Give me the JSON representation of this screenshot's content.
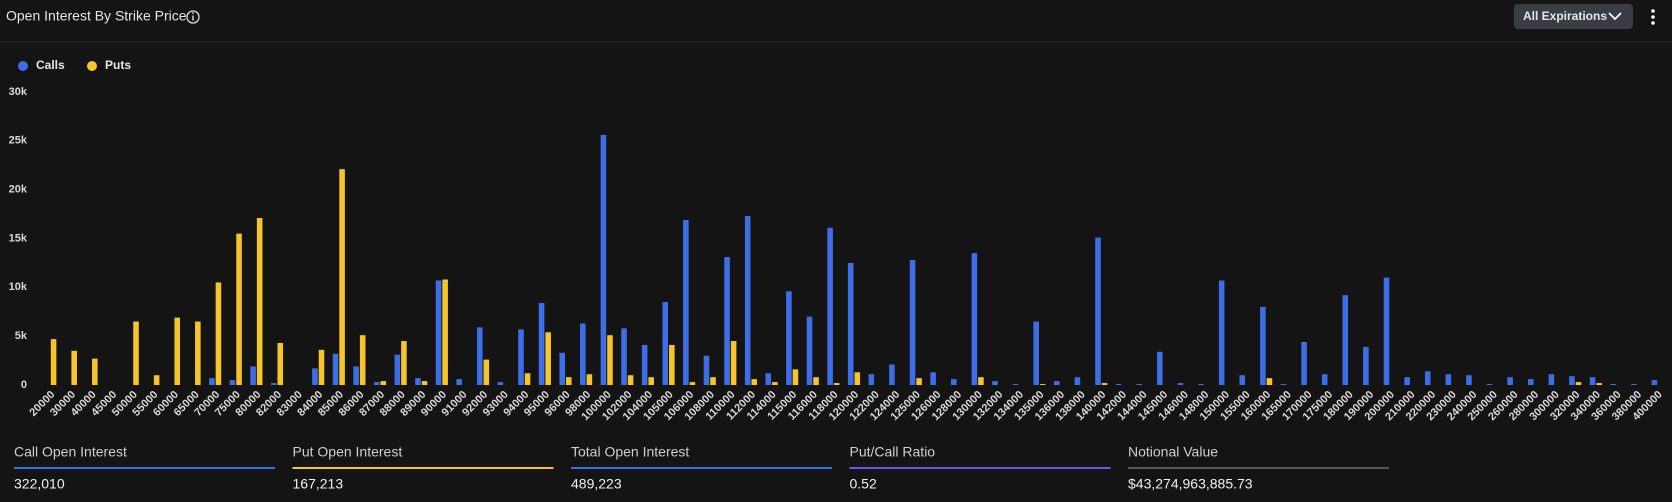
{
  "header": {
    "title": "Open Interest By Strike Price",
    "button": "All Expirations"
  },
  "chart_data": {
    "type": "bar",
    "categories": [
      "20000",
      "30000",
      "40000",
      "45000",
      "50000",
      "55000",
      "60000",
      "65000",
      "70000",
      "75000",
      "80000",
      "82000",
      "83000",
      "84000",
      "85000",
      "86000",
      "87000",
      "88000",
      "89000",
      "90000",
      "91000",
      "92000",
      "93000",
      "94000",
      "95000",
      "96000",
      "98000",
      "100000",
      "102000",
      "104000",
      "105000",
      "106000",
      "108000",
      "110000",
      "112000",
      "114000",
      "115000",
      "116000",
      "118000",
      "120000",
      "122000",
      "124000",
      "125000",
      "126000",
      "128000",
      "130000",
      "132000",
      "134000",
      "135000",
      "136000",
      "138000",
      "140000",
      "142000",
      "144000",
      "145000",
      "146000",
      "148000",
      "150000",
      "155000",
      "160000",
      "165000",
      "170000",
      "175000",
      "180000",
      "190000",
      "200000",
      "210000",
      "220000",
      "230000",
      "240000",
      "250000",
      "260000",
      "280000",
      "300000",
      "320000",
      "340000",
      "360000",
      "380000",
      "400000"
    ],
    "series": [
      {
        "name": "Calls",
        "color": "#3d6ee8",
        "values": [
          0,
          0,
          0,
          0,
          0,
          0,
          0,
          0,
          700,
          500,
          1900,
          200,
          0,
          1700,
          3200,
          1900,
          300,
          3100,
          700,
          10700,
          600,
          5900,
          300,
          5700,
          8400,
          3300,
          6300,
          25600,
          5800,
          4100,
          8500,
          16900,
          3000,
          13100,
          17300,
          1200,
          9600,
          7000,
          16100,
          12500,
          1100,
          2100,
          12800,
          1300,
          600,
          13500,
          400,
          100,
          6500,
          400,
          800,
          15100,
          100,
          100,
          3400,
          200,
          100,
          10700,
          1000,
          8000,
          100,
          4400,
          1100,
          9200,
          3900,
          11000,
          800,
          1400,
          1100,
          1000,
          100,
          800,
          600,
          1100,
          900,
          800,
          100,
          100,
          500
        ]
      },
      {
        "name": "Puts",
        "color": "#f5c52b",
        "values": [
          4700,
          3500,
          2700,
          0,
          6500,
          1000,
          6900,
          6500,
          10500,
          15500,
          17100,
          4300,
          0,
          3600,
          22100,
          5100,
          400,
          4500,
          400,
          10800,
          0,
          2600,
          0,
          1200,
          5400,
          800,
          1100,
          5100,
          1000,
          800,
          4100,
          300,
          800,
          4500,
          600,
          300,
          1600,
          800,
          200,
          1300,
          0,
          0,
          700,
          0,
          0,
          800,
          0,
          0,
          100,
          0,
          0,
          200,
          0,
          0,
          0,
          0,
          0,
          0,
          0,
          700,
          0,
          0,
          0,
          0,
          0,
          0,
          0,
          0,
          0,
          0,
          0,
          0,
          0,
          0,
          300,
          200,
          0,
          0,
          0
        ]
      }
    ],
    "ylim": [
      0,
      30000
    ],
    "yticks": [
      0,
      {
        "value": 5000,
        "label": "5k"
      },
      {
        "value": 10000,
        "label": "10k"
      },
      {
        "value": 15000,
        "label": "15k"
      },
      {
        "value": 20000,
        "label": "20k"
      },
      {
        "value": 25000,
        "label": "25k"
      },
      {
        "value": 30000,
        "label": "30k"
      }
    ],
    "grid": false
  },
  "stats": [
    {
      "label": "Call Open Interest",
      "value": "322,010"
    },
    {
      "label": "Put Open Interest",
      "value": "167,213"
    },
    {
      "label": "Total Open Interest",
      "value": "489,223"
    },
    {
      "label": "Put/Call Ratio",
      "value": "0.52"
    },
    {
      "label": "Notional Value",
      "value": "$43,274,963,885.73"
    }
  ]
}
